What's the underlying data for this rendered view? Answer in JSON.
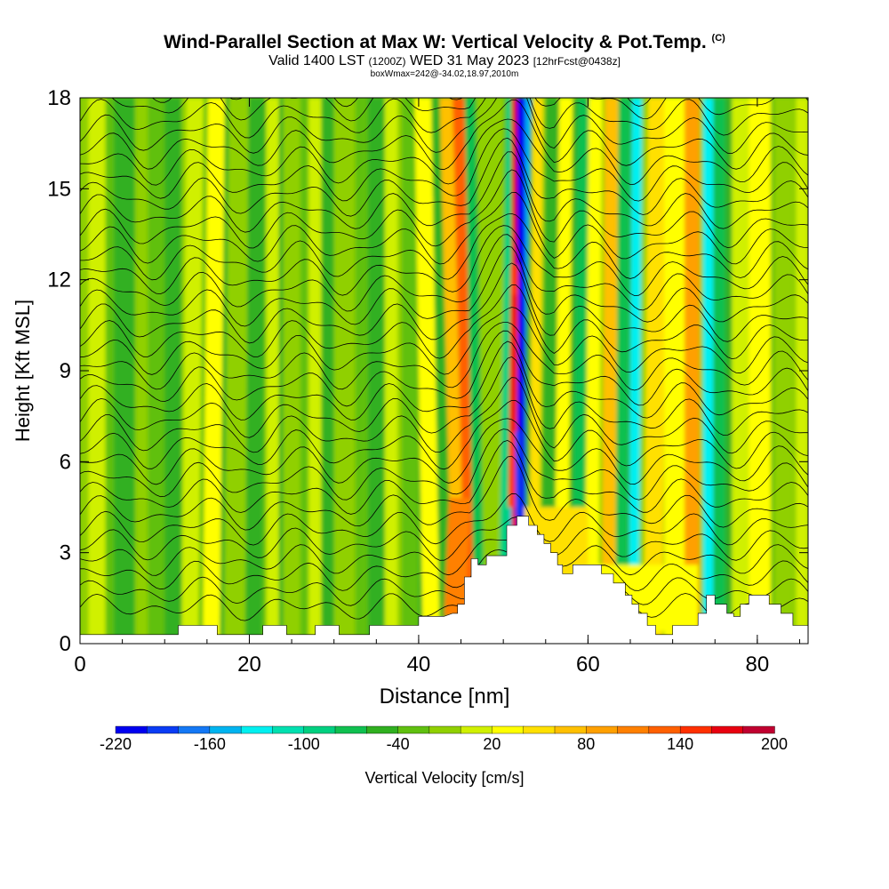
{
  "title_main": "Wind-Parallel Section at Max W: Vertical Velocity & Pot.Temp.",
  "title_copyright": "(C)",
  "subtitle_valid": "Valid 1400 LST",
  "subtitle_z": "(1200Z)",
  "subtitle_date": "WED 31 May 2023",
  "subtitle_fcst": "[12hrFcst@0438z]",
  "box_line": "boxWmax=242@-34.02,18.97,2010m",
  "chart_data": {
    "type": "heatmap",
    "xlabel": "Distance [nm]",
    "ylabel": "Height [Kft MSL]",
    "xlim": [
      0,
      86
    ],
    "ylim": [
      0,
      18
    ],
    "x_ticks": [
      "0",
      "20",
      "40",
      "60",
      "80"
    ],
    "y_ticks": [
      "0",
      "3",
      "6",
      "9",
      "12",
      "15",
      "18"
    ],
    "colorbar": {
      "label": "Vertical Velocity [cm/s]",
      "tick_labels": [
        "-220",
        "-160",
        "-100",
        "-40",
        "20",
        "80",
        "140",
        "200"
      ],
      "colors": [
        "#0000f0",
        "#0a3cf5",
        "#1478f5",
        "#00b4f0",
        "#00f0f0",
        "#00e0b0",
        "#00d080",
        "#10c050",
        "#30b020",
        "#60c010",
        "#90d000",
        "#d0f000",
        "#ffff00",
        "#ffe000",
        "#ffc000",
        "#ffa000",
        "#ff8000",
        "#ff6000",
        "#ff3000",
        "#e80010",
        "#c00030"
      ]
    },
    "terrain": [
      [
        0,
        0.3
      ],
      [
        11.6,
        0.3
      ],
      [
        11.6,
        0.6
      ],
      [
        16.2,
        0.6
      ],
      [
        16.2,
        0.3
      ],
      [
        19,
        0.3
      ],
      [
        19,
        0.3
      ],
      [
        21.6,
        0.3
      ],
      [
        21.6,
        0.6
      ],
      [
        24.4,
        0.6
      ],
      [
        24.4,
        0.3
      ],
      [
        27.8,
        0.3
      ],
      [
        27.8,
        0.6
      ],
      [
        30.6,
        0.6
      ],
      [
        30.6,
        0.3
      ],
      [
        34.2,
        0.3
      ],
      [
        34.2,
        0.6
      ],
      [
        39,
        0.6
      ],
      [
        40,
        0.6
      ],
      [
        40,
        0.9
      ],
      [
        43,
        0.9
      ],
      [
        44,
        1.0
      ],
      [
        44.6,
        1.0
      ],
      [
        44.6,
        1.3
      ],
      [
        45.4,
        1.3
      ],
      [
        45.4,
        2.2
      ],
      [
        46.2,
        2.2
      ],
      [
        46.2,
        2.8
      ],
      [
        47,
        2.8
      ],
      [
        47,
        2.6
      ],
      [
        48,
        2.6
      ],
      [
        48,
        2.9
      ],
      [
        50.4,
        2.9
      ],
      [
        50.4,
        3.9
      ],
      [
        51.6,
        3.9
      ],
      [
        51.6,
        4.2
      ],
      [
        53.0,
        4.2
      ],
      [
        53.0,
        3.9
      ],
      [
        54.0,
        3.9
      ],
      [
        54.0,
        3.6
      ],
      [
        54.8,
        3.6
      ],
      [
        54.8,
        3.3
      ],
      [
        55.6,
        3.3
      ],
      [
        55.6,
        3.0
      ],
      [
        56.4,
        3.0
      ],
      [
        56.4,
        2.6
      ],
      [
        57.0,
        2.6
      ],
      [
        57.0,
        2.3
      ],
      [
        58.2,
        2.3
      ],
      [
        58.2,
        2.6
      ],
      [
        61.6,
        2.6
      ],
      [
        61.6,
        2.3
      ],
      [
        63.0,
        2.3
      ],
      [
        63.0,
        2.0
      ],
      [
        64.4,
        2.0
      ],
      [
        64.4,
        1.6
      ],
      [
        65.2,
        1.6
      ],
      [
        65.2,
        1.3
      ],
      [
        66.0,
        1.3
      ],
      [
        66.0,
        1.0
      ],
      [
        67.0,
        1.0
      ],
      [
        67.0,
        0.6
      ],
      [
        68.0,
        0.6
      ],
      [
        68.0,
        0.3
      ],
      [
        70.0,
        0.3
      ],
      [
        70.0,
        0.6
      ],
      [
        73.0,
        0.6
      ],
      [
        73.0,
        1.0
      ],
      [
        74.0,
        1.0
      ],
      [
        74.0,
        1.6
      ],
      [
        75.0,
        1.6
      ],
      [
        75.0,
        1.3
      ],
      [
        76.4,
        1.3
      ],
      [
        76.4,
        1.0
      ],
      [
        77.2,
        1.0
      ],
      [
        77.2,
        0.9
      ],
      [
        78.0,
        0.9
      ],
      [
        78.0,
        1.3
      ],
      [
        79.0,
        1.3
      ],
      [
        79.0,
        1.6
      ],
      [
        81.4,
        1.6
      ],
      [
        81.4,
        1.3
      ],
      [
        82.8,
        1.3
      ],
      [
        82.8,
        1.0
      ],
      [
        84.2,
        1.0
      ],
      [
        84.2,
        0.6
      ],
      [
        86,
        0.6
      ]
    ]
  }
}
